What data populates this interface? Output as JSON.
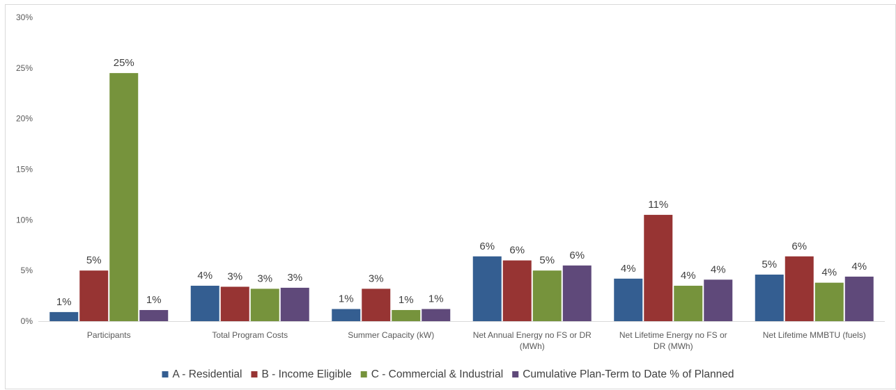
{
  "chart_data": {
    "type": "bar",
    "title": "",
    "xlabel": "",
    "ylabel": "",
    "ylim": [
      0,
      30
    ],
    "yticks": [
      "0%",
      "5%",
      "10%",
      "15%",
      "20%",
      "25%",
      "30%"
    ],
    "grid": false,
    "legend_position": "bottom",
    "categories": [
      [
        "Participants"
      ],
      [
        "Total Program Costs"
      ],
      [
        "Summer Capacity (kW)"
      ],
      [
        "Net Annual Energy no FS or DR",
        "(MWh)"
      ],
      [
        "Net Lifetime Energy no FS or",
        "DR (MWh)"
      ],
      [
        "Net Lifetime MMBTU (fuels)"
      ]
    ],
    "series": [
      {
        "name": "A - Residential",
        "color": "#345e91",
        "values": [
          0.9,
          3.5,
          1.2,
          6.4,
          4.2,
          4.6
        ],
        "labels": [
          "1%",
          "4%",
          "1%",
          "6%",
          "4%",
          "5%"
        ]
      },
      {
        "name": "B - Income Eligible",
        "color": "#973433",
        "values": [
          5.0,
          3.4,
          3.2,
          6.0,
          10.5,
          6.4
        ],
        "labels": [
          "5%",
          "3%",
          "3%",
          "6%",
          "11%",
          "6%"
        ]
      },
      {
        "name": "C - Commercial & Industrial",
        "color": "#76933c",
        "values": [
          24.5,
          3.2,
          1.1,
          5.0,
          3.5,
          3.8
        ],
        "labels": [
          "25%",
          "3%",
          "1%",
          "5%",
          "4%",
          "4%"
        ]
      },
      {
        "name": "Cumulative Plan-Term to Date % of Planned",
        "color": "#5f497a",
        "values": [
          1.1,
          3.3,
          1.2,
          5.5,
          4.1,
          4.4
        ],
        "labels": [
          "1%",
          "3%",
          "1%",
          "6%",
          "4%",
          "4%"
        ]
      }
    ]
  }
}
